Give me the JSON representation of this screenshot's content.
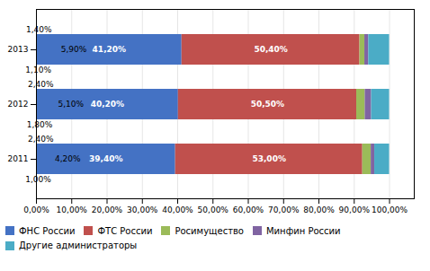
{
  "chart_data": {
    "type": "bar",
    "orientation": "horizontal",
    "stacked": true,
    "data_labels": true,
    "grid": true,
    "legend": "bottom",
    "categories": [
      "2011",
      "2012",
      "2013"
    ],
    "series": [
      {
        "name": "ФНС России",
        "color": "#4472C4",
        "values": [
          39.4,
          40.2,
          41.2
        ],
        "value_labels": [
          "39,40%",
          "40,20%",
          "41,20%"
        ]
      },
      {
        "name": "ФТС России",
        "color": "#C0504D",
        "values": [
          53.0,
          50.5,
          50.4
        ],
        "value_labels": [
          "53,00%",
          "50,50%",
          "50,40%"
        ]
      },
      {
        "name": "Росимущество",
        "color": "#9BBB59",
        "values": [
          2.4,
          2.4,
          1.4
        ],
        "value_labels": [
          "2,40%",
          "2,40%",
          "1,40%"
        ]
      },
      {
        "name": "Минфин России",
        "color": "#8064A2",
        "values": [
          1.0,
          1.8,
          1.1
        ],
        "value_labels": [
          "1,00%",
          "1,80%",
          "1,10%"
        ]
      },
      {
        "name": "Другие администраторы",
        "color": "#4BACC6",
        "values": [
          4.2,
          5.1,
          5.9
        ],
        "value_labels": [
          "4,20%",
          "5,10%",
          "5,90%"
        ]
      }
    ],
    "xlim": [
      0,
      107
    ],
    "xticks": [
      {
        "value": 0,
        "label": "0,00%"
      },
      {
        "value": 10,
        "label": "10,00%"
      },
      {
        "value": 20,
        "label": "20,00%"
      },
      {
        "value": 30,
        "label": "30,00%"
      },
      {
        "value": 40,
        "label": "40,00%"
      },
      {
        "value": 50,
        "label": "50,00%"
      },
      {
        "value": 60,
        "label": "60,00%"
      },
      {
        "value": 70,
        "label": "70,00%"
      },
      {
        "value": 80,
        "label": "80,00%"
      },
      {
        "value": 90,
        "label": "90,00%"
      },
      {
        "value": 100,
        "label": "100,00%"
      }
    ]
  }
}
